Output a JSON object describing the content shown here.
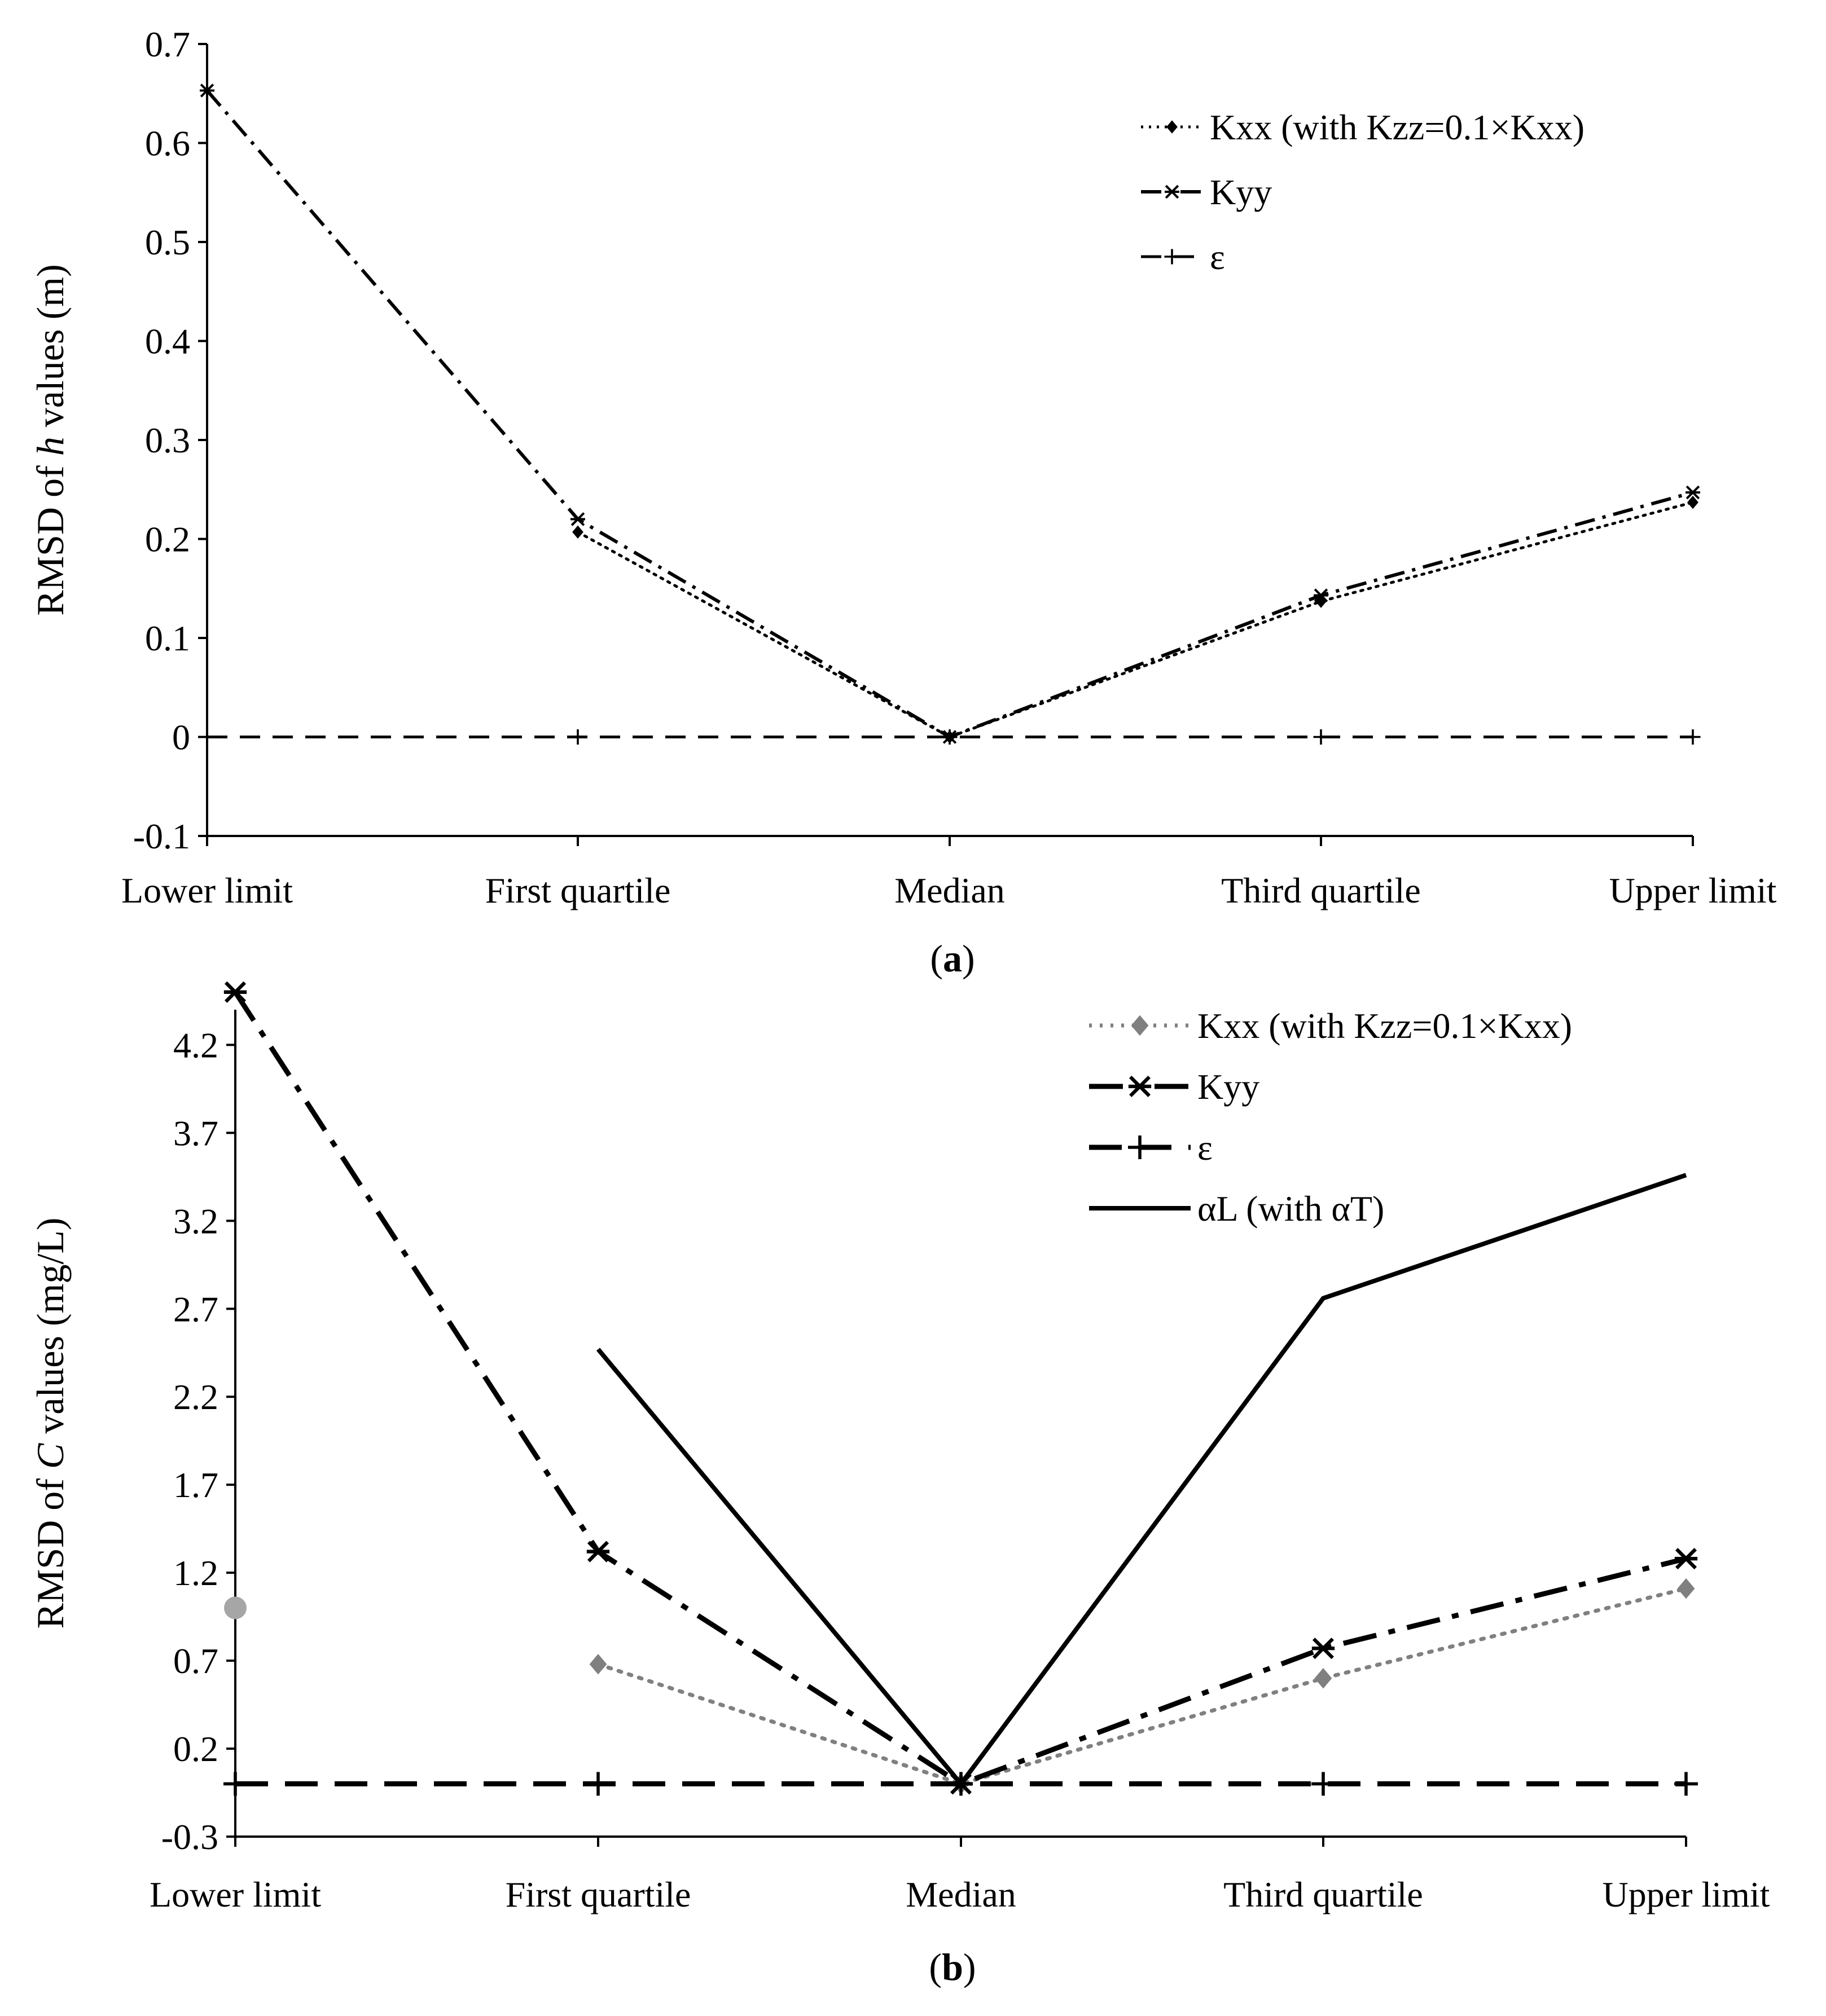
{
  "chart_data": [
    {
      "id": "a",
      "type": "line",
      "caption_bold": "a",
      "ylabel_parts": [
        "RMSD of ",
        "h",
        " values (m)"
      ],
      "categories": [
        "Lower limit",
        "First quartile",
        "Median",
        "Third quartile",
        "Upper limit"
      ],
      "ylim": [
        -0.1,
        0.7
      ],
      "yticks": [
        -0.1,
        0,
        0.1,
        0.2,
        0.3,
        0.4,
        0.5,
        0.6,
        0.7
      ],
      "ytick_labels": [
        "-0.1",
        "0",
        "0.1",
        "0.2",
        "0.3",
        "0.4",
        "0.5",
        "0.6",
        "0.7"
      ],
      "legend_position": "top-right",
      "series": [
        {
          "key": "kxx",
          "name": "Kxx (with Kzz=0.1×Kxx)",
          "values": [
            null,
            0.207,
            0,
            0.137,
            0.237
          ],
          "color": "#000000",
          "style": "dotted",
          "marker": "diamond"
        },
        {
          "key": "kyy",
          "name": "Kyy",
          "values": [
            0.653,
            0.22,
            0,
            0.143,
            0.247
          ],
          "color": "#000000",
          "style": "dashdot",
          "marker": "star"
        },
        {
          "key": "eps",
          "name": "ε",
          "values": [
            0,
            0,
            0,
            0,
            0
          ],
          "color": "#000000",
          "style": "dashed",
          "marker": "plus"
        }
      ]
    },
    {
      "id": "b",
      "type": "line",
      "caption_bold": "b",
      "ylabel_parts": [
        "RMSD of ",
        "C",
        " values  (mg/L)"
      ],
      "categories": [
        "Lower limit",
        "First quartile",
        "Median",
        "Third quartile",
        "Upper limit"
      ],
      "ylim": [
        -0.3,
        4.4
      ],
      "yticks": [
        -0.3,
        0.2,
        0.7,
        1.2,
        1.7,
        2.2,
        2.7,
        3.2,
        3.7,
        4.2
      ],
      "ytick_labels": [
        "-0.3",
        "0.2",
        "0.7",
        "1.2",
        "1.7",
        "2.2",
        "2.7",
        "3.2",
        "3.7",
        "4.2"
      ],
      "legend_position": "top-right",
      "series": [
        {
          "key": "kxx",
          "name": "Kxx (with Kzz=0.1×Kxx)",
          "values": [
            1.0,
            0.68,
            0,
            0.6,
            1.11
          ],
          "color": "#808080",
          "style": "dotted",
          "marker": "diamond"
        },
        {
          "key": "kyy",
          "name": "Kyy",
          "values": [
            4.5,
            1.32,
            0,
            0.77,
            1.28
          ],
          "color": "#000000",
          "style": "dashdot",
          "marker": "star"
        },
        {
          "key": "eps",
          "name": "ε",
          "values": [
            0,
            0,
            0,
            0,
            0
          ],
          "color": "#000000",
          "style": "dashed",
          "marker": "plus"
        },
        {
          "key": "al",
          "name": "αL (with αT)",
          "values": [
            null,
            2.47,
            0,
            2.76,
            3.46
          ],
          "color": "#000000",
          "style": "solid",
          "marker": "none"
        }
      ]
    }
  ]
}
